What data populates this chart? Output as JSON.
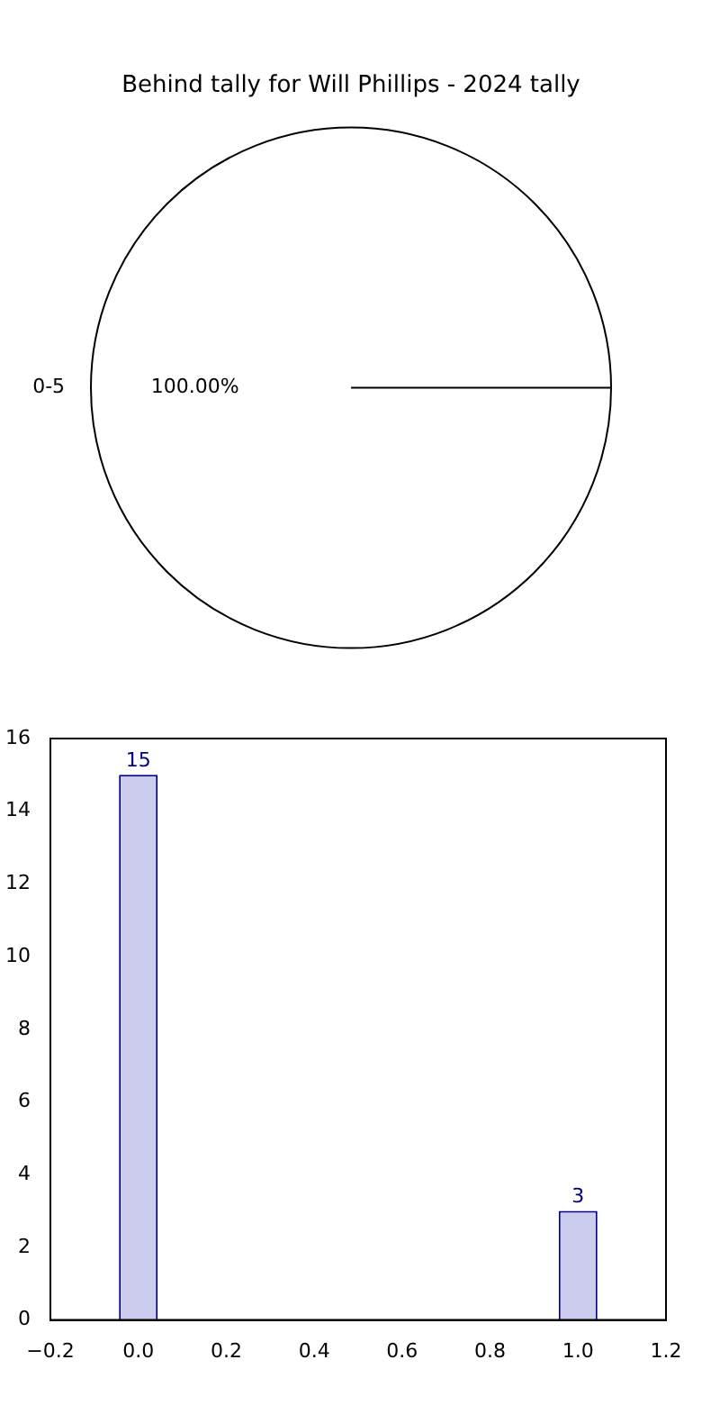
{
  "chart_data": [
    {
      "type": "pie",
      "title": "Behind tally for Will Phillips - 2024 tally",
      "categories": [
        "0-5"
      ],
      "values": [
        100
      ],
      "colors": [
        "#ffffff"
      ],
      "value_labels": [
        "100.00%"
      ],
      "legend": false
    },
    {
      "type": "bar",
      "x": [
        0,
        1
      ],
      "values": [
        15,
        3
      ],
      "color": "#ccccee",
      "xlim": [
        -0.2,
        1.2
      ],
      "xticks": [
        {
          "value": -0.2,
          "label": "−0.2"
        },
        {
          "value": 0,
          "label": "0.0"
        },
        {
          "value": 0.2,
          "label": "0.2"
        },
        {
          "value": 0.4,
          "label": "0.4"
        },
        {
          "value": 0.6,
          "label": "0.6"
        },
        {
          "value": 0.8,
          "label": "0.8"
        },
        {
          "value": 1,
          "label": "1.0"
        },
        {
          "value": 1.2,
          "label": "1.2"
        }
      ],
      "ylim": [
        0,
        16
      ],
      "yticks": [
        0,
        2,
        4,
        6,
        8,
        10,
        12,
        14,
        16
      ],
      "grid": false,
      "legend": false,
      "data_labels": true
    }
  ]
}
